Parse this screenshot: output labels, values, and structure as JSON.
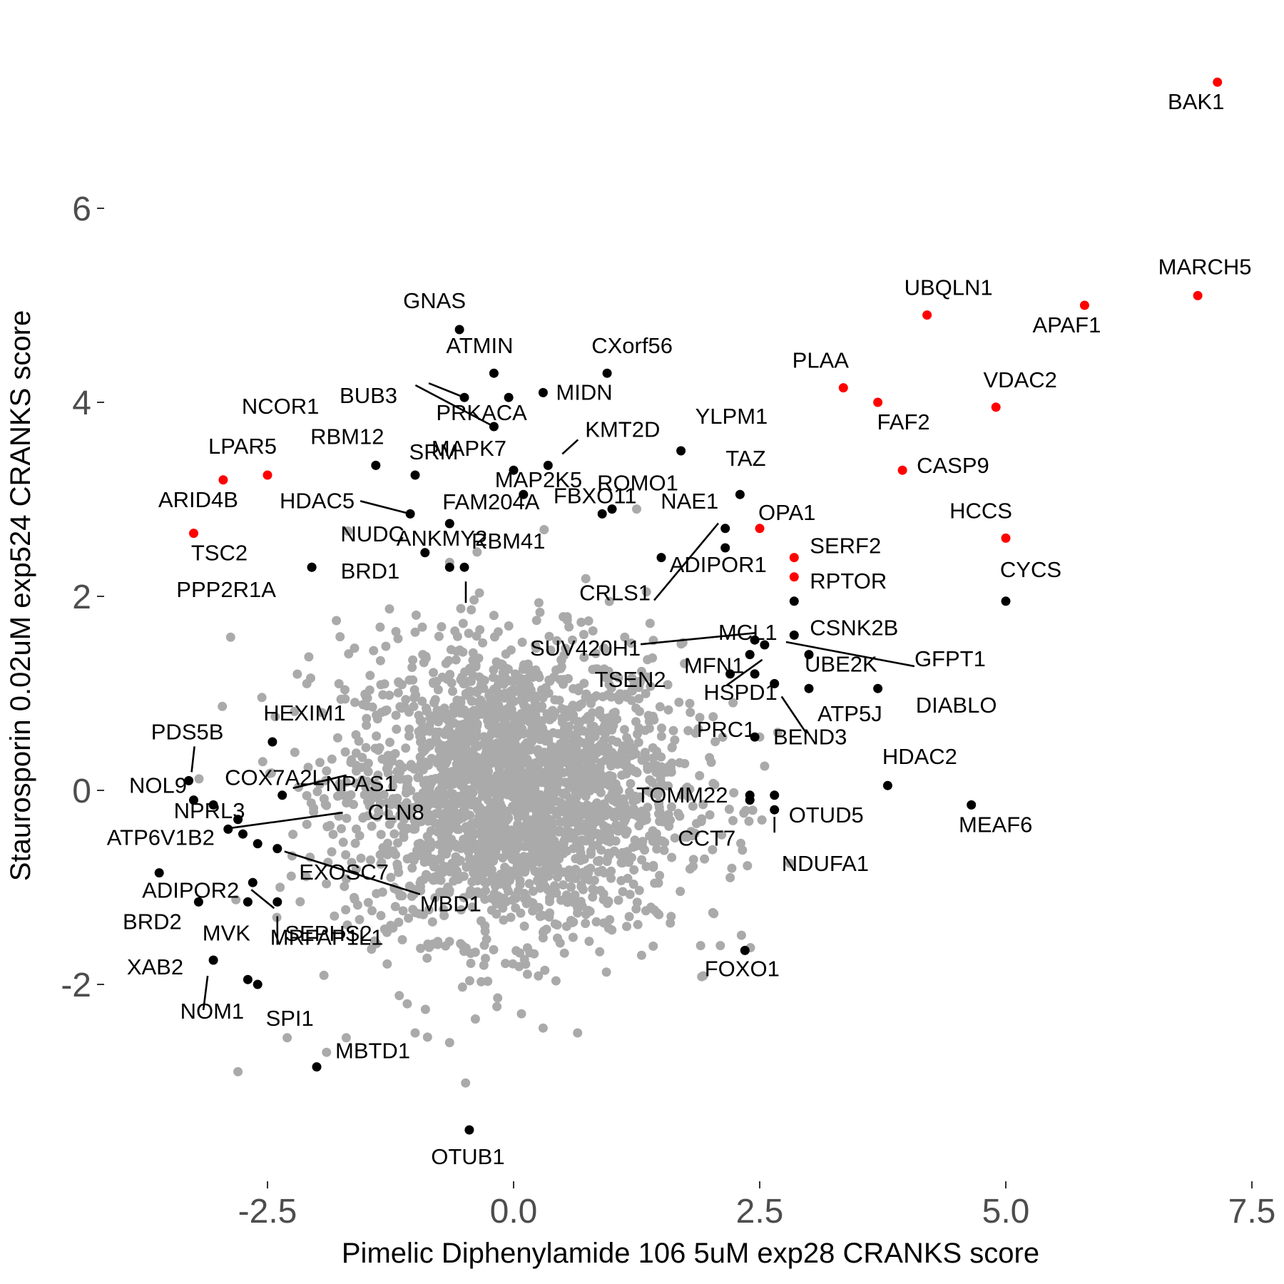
{
  "chart_data": {
    "type": "scatter",
    "title": "",
    "xlabel": "Pimelic Diphenylamide 106 5uM exp28 CRANKS score",
    "ylabel": "Staurosporin 0.02uM exp524 CRANKS score",
    "xlim": [
      -4.2,
      7.7
    ],
    "ylim": [
      -3.9,
      7.7
    ],
    "xticks": [
      -2.5,
      0.0,
      2.5,
      5.0,
      7.5
    ],
    "xtick_labels": [
      "-2.5",
      "0.0",
      "2.5",
      "5.0",
      "7.5"
    ],
    "yticks": [
      -2,
      0,
      2,
      4,
      6
    ],
    "ytick_labels": [
      "-2",
      "0",
      "2",
      "4",
      "6"
    ],
    "grid": false,
    "legend": "none",
    "colors": {
      "background": "#aaaaaa",
      "highlight": "#ff0000",
      "labeled": "#000000"
    },
    "background_points": {
      "description_count": 2500,
      "center": [
        0.0,
        0.0
      ],
      "spread_x": 0.85,
      "spread_y": 0.75
    },
    "highlight_points": [
      {
        "label": "BAK1",
        "x": 7.15,
        "y": 7.3
      },
      {
        "label": "MARCH5",
        "x": 6.95,
        "y": 5.1
      },
      {
        "label": "APAF1",
        "x": 5.8,
        "y": 5.0
      },
      {
        "label": "UBQLN1",
        "x": 4.2,
        "y": 4.9
      },
      {
        "label": "VDAC2",
        "x": 4.9,
        "y": 3.95
      },
      {
        "label": "PLAA",
        "x": 3.35,
        "y": 4.15
      },
      {
        "label": "FAF2",
        "x": 3.7,
        "y": 4.0
      },
      {
        "label": "CASP9",
        "x": 3.95,
        "y": 3.3
      },
      {
        "label": "HCCS",
        "x": 5.0,
        "y": 2.6
      },
      {
        "label": "OPA1",
        "x": 2.5,
        "y": 2.7
      },
      {
        "label": "SERF2",
        "x": 2.85,
        "y": 2.4
      },
      {
        "label": "RPTOR",
        "x": 2.85,
        "y": 2.2
      },
      {
        "label": "LPAR5",
        "x": -2.5,
        "y": 3.25
      },
      {
        "label": "ARID4B",
        "x": -2.95,
        "y": 3.2
      },
      {
        "label": "TSC2",
        "x": -3.25,
        "y": 2.65
      }
    ],
    "labeled_points": [
      {
        "label": "GNAS",
        "x": -0.55,
        "y": 4.75
      },
      {
        "label": "ATMIN",
        "x": -0.2,
        "y": 4.3
      },
      {
        "label": "CXorf56",
        "x": 0.95,
        "y": 4.3
      },
      {
        "label": "BUB3",
        "x": -0.5,
        "y": 4.05
      },
      {
        "label": "MIDN",
        "x": 0.3,
        "y": 4.1
      },
      {
        "label": "PRKACA",
        "x": -0.05,
        "y": 4.05
      },
      {
        "label": "NCOR1",
        "x": -0.2,
        "y": 3.75
      },
      {
        "label": "YLPM1",
        "x": 1.7,
        "y": 3.5
      },
      {
        "label": "KMT2D",
        "x": 0.35,
        "y": 3.35
      },
      {
        "label": "MAPK7",
        "x": 0.0,
        "y": 3.3
      },
      {
        "label": "RBM12",
        "x": -1.4,
        "y": 3.35
      },
      {
        "label": "SRM",
        "x": -1.0,
        "y": 3.25
      },
      {
        "label": "TAZ",
        "x": 2.3,
        "y": 3.05
      },
      {
        "label": "FBXO11",
        "x": 0.9,
        "y": 2.85
      },
      {
        "label": "MAP2K5",
        "x": 0.1,
        "y": 3.05
      },
      {
        "label": "ROMO1",
        "x": 1.0,
        "y": 2.9
      },
      {
        "label": "HDAC5",
        "x": -1.05,
        "y": 2.85
      },
      {
        "label": "FAM204A",
        "x": -0.65,
        "y": 2.75
      },
      {
        "label": "NAE1",
        "x": 2.15,
        "y": 2.7
      },
      {
        "label": "ANKMY2",
        "x": -0.9,
        "y": 2.45
      },
      {
        "label": "NUDC",
        "x": -2.05,
        "y": 2.3
      },
      {
        "label": "ADIPOR1",
        "x": 2.15,
        "y": 2.5
      },
      {
        "label": "BRD1",
        "x": -0.65,
        "y": 2.3
      },
      {
        "label": "CYCS",
        "x": 5.0,
        "y": 1.95
      },
      {
        "label": "RBM41",
        "x": -0.5,
        "y": 2.3
      },
      {
        "label": "PPP2R1A",
        "x": -2.05,
        "y": 2.3
      },
      {
        "label": "CRLS1",
        "x": 1.5,
        "y": 2.4
      },
      {
        "label": "MCL1",
        "x": 2.85,
        "y": 1.95
      },
      {
        "label": "CSNK2B",
        "x": 2.85,
        "y": 1.6
      },
      {
        "label": "GFPT1",
        "x": 2.55,
        "y": 1.5
      },
      {
        "label": "SUV420H1",
        "x": 2.45,
        "y": 1.55
      },
      {
        "label": "MFN1",
        "x": 2.4,
        "y": 1.4
      },
      {
        "label": "UBE2K",
        "x": 3.0,
        "y": 1.4
      },
      {
        "label": "TSEN2",
        "x": 2.2,
        "y": 1.2
      },
      {
        "label": "DIABLO",
        "x": 3.7,
        "y": 1.05
      },
      {
        "label": "ATP5J",
        "x": 3.0,
        "y": 1.05
      },
      {
        "label": "HSPD1",
        "x": 2.45,
        "y": 1.2
      },
      {
        "label": "BEND3",
        "x": 2.65,
        "y": 1.1
      },
      {
        "label": "PRC1",
        "x": 2.45,
        "y": 0.55
      },
      {
        "label": "HDAC2",
        "x": 3.8,
        "y": 0.05
      },
      {
        "label": "TOMM22",
        "x": 2.4,
        "y": -0.05
      },
      {
        "label": "OTUD5",
        "x": 2.65,
        "y": -0.05
      },
      {
        "label": "MEAF6",
        "x": 4.65,
        "y": -0.15
      },
      {
        "label": "CCT7",
        "x": 2.4,
        "y": -0.1
      },
      {
        "label": "NDUFA1",
        "x": 2.65,
        "y": -0.2
      },
      {
        "label": "FOXO1",
        "x": 2.35,
        "y": -1.65
      },
      {
        "label": "PDS5B",
        "x": -3.3,
        "y": 0.1
      },
      {
        "label": "HEXIM1",
        "x": -2.45,
        "y": 0.5
      },
      {
        "label": "NOL9",
        "x": -3.25,
        "y": -0.1
      },
      {
        "label": "COX7A2L",
        "x": -3.05,
        "y": -0.15
      },
      {
        "label": "NPAS1",
        "x": -2.35,
        "y": -0.05
      },
      {
        "label": "NPRL3",
        "x": -2.8,
        "y": -0.3
      },
      {
        "label": "CLN8",
        "x": -2.75,
        "y": -0.45
      },
      {
        "label": "ATP6V1B2",
        "x": -2.9,
        "y": -0.4
      },
      {
        "label": "EXOSC7",
        "x": -2.6,
        "y": -0.55
      },
      {
        "label": "MBD1",
        "x": -2.4,
        "y": -0.6
      },
      {
        "label": "ADIPOR2",
        "x": -3.6,
        "y": -0.85
      },
      {
        "label": "BRD2",
        "x": -3.2,
        "y": -1.15
      },
      {
        "label": "SEPHS2",
        "x": -2.65,
        "y": -0.95
      },
      {
        "label": "MVK",
        "x": -2.7,
        "y": -1.15
      },
      {
        "label": "MRFAP1L1",
        "x": -2.4,
        "y": -1.15
      },
      {
        "label": "XAB2",
        "x": -3.05,
        "y": -1.75
      },
      {
        "label": "NOM1",
        "x": -2.7,
        "y": -1.95
      },
      {
        "label": "SPI1",
        "x": -2.6,
        "y": -2.0
      },
      {
        "label": "MBTD1",
        "x": -2.0,
        "y": -2.85
      },
      {
        "label": "OTUB1",
        "x": -0.45,
        "y": -3.5
      }
    ]
  }
}
